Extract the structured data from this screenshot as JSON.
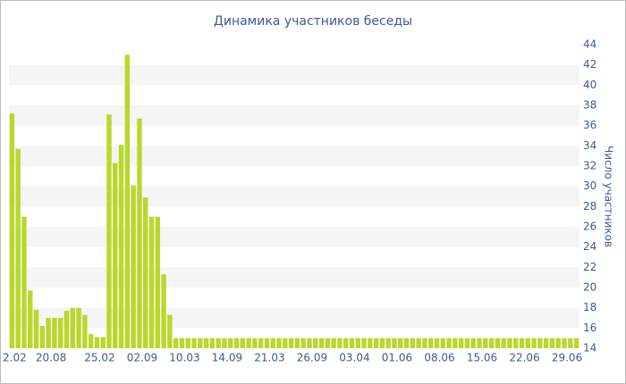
{
  "chart_data": {
    "type": "bar",
    "title": "Динамика участников беседы",
    "y_axis_label": "Число участников",
    "categories": [
      "2.02",
      null,
      null,
      null,
      null,
      null,
      "20.08",
      null,
      null,
      null,
      null,
      null,
      null,
      null,
      "25.02",
      null,
      null,
      null,
      null,
      null,
      null,
      "02.09",
      null,
      null,
      null,
      null,
      null,
      null,
      "10.03",
      null,
      null,
      null,
      null,
      null,
      null,
      "14.09",
      null,
      null,
      null,
      null,
      null,
      null,
      "21.03",
      null,
      null,
      null,
      null,
      null,
      null,
      "26.09",
      null,
      null,
      null,
      null,
      null,
      null,
      "03.04",
      null,
      null,
      null,
      null,
      null,
      null,
      "01.06",
      null,
      null,
      null,
      null,
      null,
      null,
      "08.06",
      null,
      null,
      null,
      null,
      null,
      null,
      "15.06",
      null,
      null,
      null,
      null,
      null,
      null,
      "22.06",
      null,
      null,
      null,
      null,
      null,
      null,
      "29.06",
      null,
      null
    ],
    "values": [
      37.2,
      33.7,
      27,
      19.7,
      17.8,
      16.2,
      17,
      17,
      17,
      17.7,
      18,
      18,
      17.3,
      15.4,
      15.1,
      15.1,
      37.1,
      32.3,
      34.1,
      43,
      30.1,
      36.7,
      28.9,
      27,
      27,
      21.3,
      17.3,
      15,
      15,
      15,
      15,
      15,
      15,
      15,
      15,
      15,
      15,
      15,
      15,
      15,
      15,
      15,
      15,
      15,
      15,
      15,
      15,
      15,
      15,
      15,
      15,
      15,
      15,
      15,
      15,
      15,
      15,
      15,
      15,
      15,
      15,
      15,
      15,
      15,
      15,
      15,
      15,
      15,
      15,
      15,
      15,
      15,
      15,
      15,
      15,
      15,
      15,
      15,
      15,
      15,
      15,
      15,
      15,
      15,
      15,
      15,
      15,
      15,
      15,
      15,
      15,
      15,
      15,
      15
    ],
    "color": "#b8d82c",
    "ylim": [
      14,
      44
    ],
    "yticks": [
      14,
      16,
      18,
      20,
      22,
      24,
      26,
      28,
      30,
      32,
      34,
      36,
      38,
      40,
      42,
      44
    ],
    "grid": true
  }
}
